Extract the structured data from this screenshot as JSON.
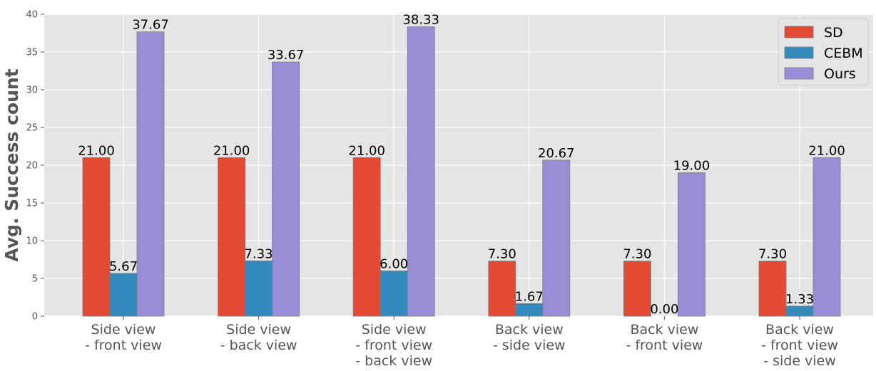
{
  "chart_data": {
    "type": "bar",
    "title": "",
    "xlabel": "",
    "ylabel": "Avg. Success count",
    "ylim": [
      0,
      40
    ],
    "yticks": [
      0,
      5,
      10,
      15,
      20,
      25,
      30,
      35,
      40
    ],
    "grid": true,
    "legend_position": "top-right",
    "categories": [
      [
        "Side view",
        "- front view"
      ],
      [
        "Side view",
        "- back view"
      ],
      [
        "Side view",
        "- front view",
        "- back view"
      ],
      [
        "Back view",
        "- side view"
      ],
      [
        "Back view",
        "- front view"
      ],
      [
        "Back view",
        "- front view",
        "- side view"
      ]
    ],
    "series": [
      {
        "name": "SD",
        "color": "#E24A33",
        "values": [
          21.0,
          21.0,
          21.0,
          7.3,
          7.3,
          7.3
        ],
        "labels": [
          "21.00",
          "21.00",
          "21.00",
          "7.30",
          "7.30",
          "7.30"
        ]
      },
      {
        "name": "CEBM",
        "color": "#348ABD",
        "values": [
          5.67,
          7.33,
          6.0,
          1.67,
          0.0,
          1.33
        ],
        "labels": [
          "5.67",
          "7.33",
          "6.00",
          "1.67",
          "0.00",
          "1.33"
        ]
      },
      {
        "name": "Ours",
        "color": "#988ED5",
        "values": [
          37.67,
          33.67,
          38.33,
          20.67,
          19.0,
          21.0
        ],
        "labels": [
          "37.67",
          "33.67",
          "38.33",
          "20.67",
          "19.00",
          "21.00"
        ]
      }
    ]
  }
}
